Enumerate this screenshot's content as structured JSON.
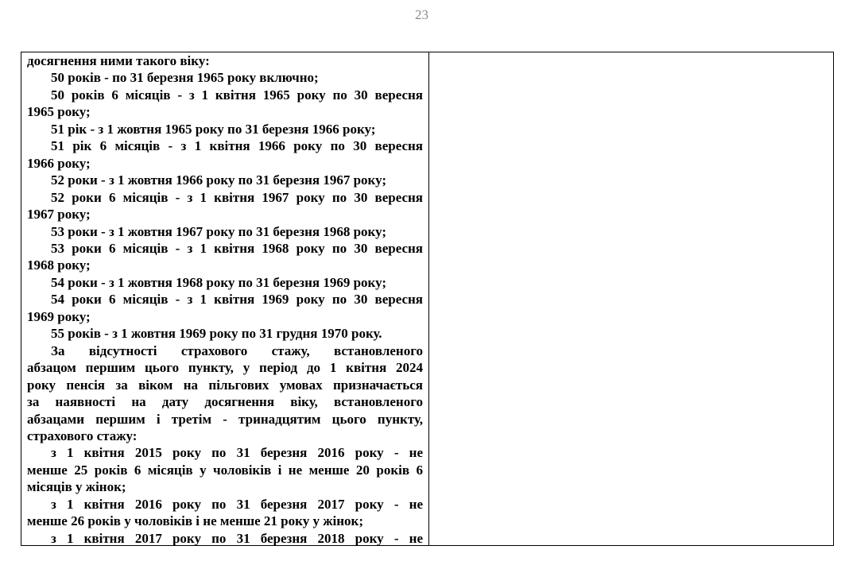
{
  "page_number": "23",
  "left_cell": {
    "paragraphs": [
      {
        "indent": false,
        "lines": [
          "досягнення ними такого віку:"
        ]
      },
      {
        "indent": true,
        "lines": [
          "50 років - по 31 березня 1965 року включно;"
        ]
      },
      {
        "indent": true,
        "lines": [
          "50 років 6 місяців - з 1 квітня 1965 року по 30 вересня",
          "1965 року;"
        ]
      },
      {
        "indent": true,
        "lines": [
          "51 рік - з 1 жовтня 1965 року по 31 березня 1966 року;"
        ]
      },
      {
        "indent": true,
        "lines": [
          "51 рік 6 місяців - з 1 квітня 1966 року по 30 вересня",
          "1966 року;"
        ]
      },
      {
        "indent": true,
        "lines": [
          "52 роки - з 1 жовтня 1966 року по 31 березня 1967 року;"
        ]
      },
      {
        "indent": true,
        "lines": [
          "52 роки 6 місяців - з 1 квітня 1967 року по 30 вересня",
          "1967 року;"
        ]
      },
      {
        "indent": true,
        "lines": [
          "53 роки - з 1 жовтня 1967 року по 31 березня 1968 року;"
        ]
      },
      {
        "indent": true,
        "lines": [
          "53 роки 6 місяців - з 1 квітня 1968 року по 30 вересня",
          "1968 року;"
        ]
      },
      {
        "indent": true,
        "lines": [
          "54 роки - з 1 жовтня 1968 року по 31 березня 1969 року;"
        ]
      },
      {
        "indent": true,
        "lines": [
          "54 роки 6 місяців - з 1 квітня 1969 року по 30 вересня",
          "1969 року;"
        ]
      },
      {
        "indent": true,
        "lines": [
          "55 років - з 1 жовтня 1969 року по 31 грудня 1970 року."
        ]
      },
      {
        "indent": true,
        "lines": [
          "За відсутності страхового стажу, встановленого",
          "абзацом першим цього пункту, у період до 1 квітня 2024",
          "року пенсія за віком на пільгових умовах призначається",
          "за наявності на дату досягнення віку, встановленого",
          "абзацами першим і третім - тринадцятим цього пункту,",
          "страхового стажу:"
        ]
      },
      {
        "indent": true,
        "lines": [
          "з 1 квітня 2015 року по 31 березня 2016 року - не",
          "менше 25 років 6 місяців у чоловіків і не менше 20 років 6",
          "місяців у жінок;"
        ]
      },
      {
        "indent": true,
        "lines": [
          "з 1 квітня 2016 року по 31 березня 2017 року - не",
          "менше 26 років у чоловіків і не менше 21 року у жінок;"
        ]
      },
      {
        "indent": true,
        "lines": [
          "з 1 квітня 2017 року по 31 березня 2018 року - не"
        ],
        "continues": true
      }
    ]
  },
  "right_cell": {
    "text": ""
  }
}
